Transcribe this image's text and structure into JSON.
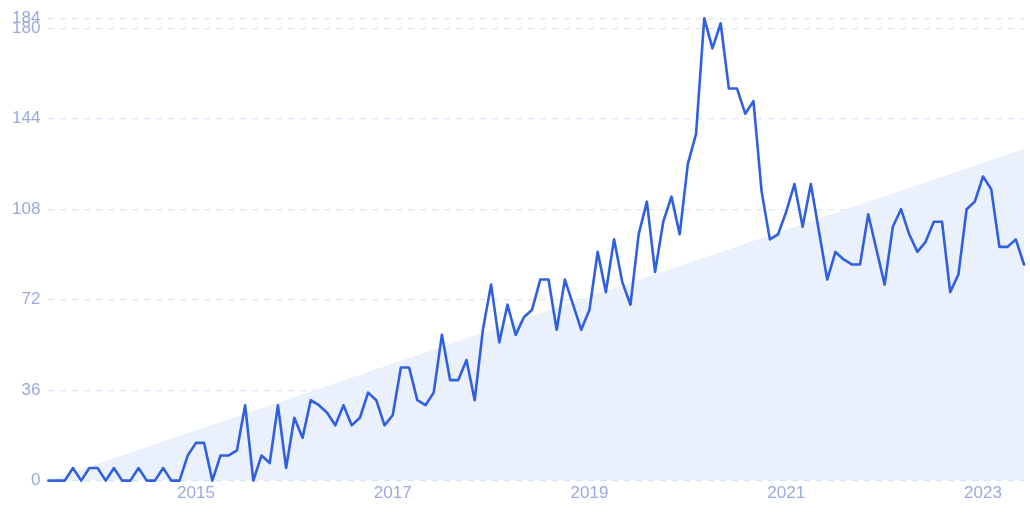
{
  "chart_data": {
    "type": "line",
    "xlim": [
      "2013-07",
      "2023-06"
    ],
    "ylim": [
      0,
      184
    ],
    "yticks": [
      0,
      36,
      72,
      108,
      144,
      180,
      184
    ],
    "xticks": [
      "2015",
      "2017",
      "2019",
      "2021",
      "2023"
    ],
    "grid": "y",
    "legend": false,
    "marker": "none",
    "line_style": "solid",
    "x": [
      "2013-07",
      "2013-08",
      "2013-09",
      "2013-10",
      "2013-11",
      "2013-12",
      "2014-01",
      "2014-02",
      "2014-03",
      "2014-04",
      "2014-05",
      "2014-06",
      "2014-07",
      "2014-08",
      "2014-09",
      "2014-10",
      "2014-11",
      "2014-12",
      "2015-01",
      "2015-02",
      "2015-03",
      "2015-04",
      "2015-05",
      "2015-06",
      "2015-07",
      "2015-08",
      "2015-09",
      "2015-10",
      "2015-11",
      "2015-12",
      "2016-01",
      "2016-02",
      "2016-03",
      "2016-04",
      "2016-05",
      "2016-06",
      "2016-07",
      "2016-08",
      "2016-09",
      "2016-10",
      "2016-11",
      "2016-12",
      "2017-01",
      "2017-02",
      "2017-03",
      "2017-04",
      "2017-05",
      "2017-06",
      "2017-07",
      "2017-08",
      "2017-09",
      "2017-10",
      "2017-11",
      "2017-12",
      "2018-01",
      "2018-02",
      "2018-03",
      "2018-04",
      "2018-05",
      "2018-06",
      "2018-07",
      "2018-08",
      "2018-09",
      "2018-10",
      "2018-11",
      "2018-12",
      "2019-01",
      "2019-02",
      "2019-03",
      "2019-04",
      "2019-05",
      "2019-06",
      "2019-07",
      "2019-08",
      "2019-09",
      "2019-10",
      "2019-11",
      "2019-12",
      "2020-01",
      "2020-02",
      "2020-03",
      "2020-04",
      "2020-05",
      "2020-06",
      "2020-07",
      "2020-08",
      "2020-09",
      "2020-10",
      "2020-11",
      "2020-12",
      "2021-01",
      "2021-02",
      "2021-03",
      "2021-04",
      "2021-05",
      "2021-06",
      "2021-07",
      "2021-08",
      "2021-09",
      "2021-10",
      "2021-11",
      "2021-12",
      "2022-01",
      "2022-02",
      "2022-03",
      "2022-04",
      "2022-05",
      "2022-06",
      "2022-07",
      "2022-08",
      "2022-09",
      "2022-10",
      "2022-11",
      "2022-12",
      "2023-01",
      "2023-02",
      "2023-03",
      "2023-04",
      "2023-05",
      "2023-06"
    ],
    "series": [
      {
        "type": "area",
        "color": "#eaf1fd",
        "x": [
          "2013-07",
          "2023-06"
        ],
        "values": [
          0,
          132
        ]
      },
      {
        "color": "#3060e0",
        "values": [
          0,
          0,
          0,
          5,
          0,
          5,
          5,
          0,
          5,
          0,
          0,
          5,
          0,
          0,
          5,
          0,
          0,
          10,
          15,
          15,
          0,
          10,
          10,
          12,
          30,
          0,
          10,
          7,
          30,
          5,
          25,
          17,
          32,
          30,
          27,
          22,
          30,
          22,
          25,
          35,
          32,
          22,
          26,
          45,
          45,
          32,
          30,
          35,
          58,
          40,
          40,
          48,
          32,
          60,
          78,
          55,
          70,
          58,
          65,
          68,
          80,
          80,
          60,
          80,
          70,
          60,
          68,
          91,
          75,
          96,
          79,
          70,
          98,
          111,
          83,
          103,
          113,
          98,
          126,
          138,
          184,
          172,
          182,
          156,
          156,
          146,
          151,
          115,
          96,
          98,
          107,
          118,
          101,
          118,
          99,
          80,
          91,
          88,
          86,
          86,
          106,
          92,
          78,
          101,
          108,
          98,
          91,
          95,
          103,
          103,
          75,
          82,
          108,
          111,
          121,
          116,
          93,
          93,
          96,
          86
        ]
      }
    ]
  }
}
